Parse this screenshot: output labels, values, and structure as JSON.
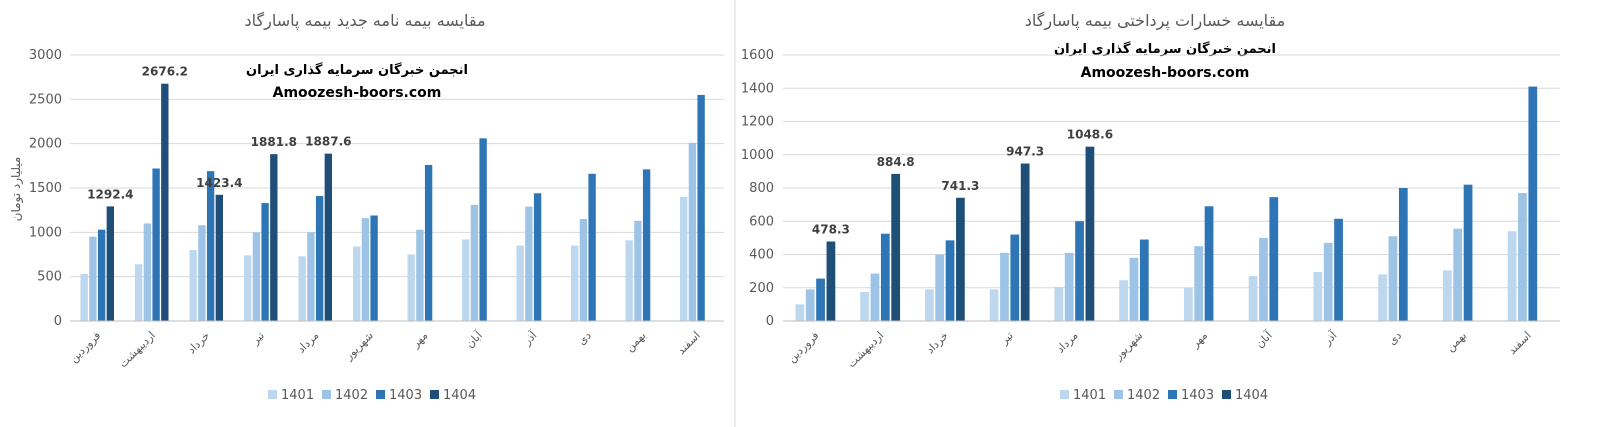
{
  "legend_series": [
    "1401",
    "1402",
    "1403",
    "1404"
  ],
  "colors": [
    "#BDD7EE",
    "#9DC3E6",
    "#2E75B6",
    "#1F4E79"
  ],
  "chart_data": [
    {
      "type": "bar",
      "title": "مقایسه بیمه نامه جدید بیمه پاسارگاد",
      "watermark_line1": "انجمن خبرگان سرمایه گذاری ایران",
      "watermark_line2": "Amoozesh-boors.com",
      "ylabel": "میلیارد تومان",
      "xlabel": "",
      "ylim": [
        0,
        3000
      ],
      "yticks": [
        0,
        500,
        1000,
        1500,
        2000,
        2500,
        3000
      ],
      "grid": true,
      "legend_position": "bottom",
      "categories": [
        "فروردین",
        "اردیبهشت",
        "خرداد",
        "تیر",
        "مرداد",
        "شهریور",
        "مهر",
        "آبان",
        "آذر",
        "دی",
        "بهمن",
        "اسفند"
      ],
      "series": [
        {
          "name": "1401",
          "values": [
            530,
            640,
            800,
            740,
            730,
            840,
            750,
            920,
            850,
            850,
            910,
            1400
          ]
        },
        {
          "name": "1402",
          "values": [
            950,
            1100,
            1080,
            1000,
            1000,
            1160,
            1030,
            1310,
            1290,
            1150,
            1130,
            2010
          ]
        },
        {
          "name": "1403",
          "values": [
            1030,
            1720,
            1690,
            1330,
            1410,
            1190,
            1760,
            2060,
            1440,
            1660,
            1710,
            2550
          ]
        },
        {
          "name": "1404",
          "values": [
            1292.4,
            2676.2,
            1423.4,
            1881.8,
            1887.6,
            null,
            null,
            null,
            null,
            null,
            null,
            null
          ]
        }
      ],
      "data_labels": [
        "1292.4",
        "2676.2",
        "1423.4",
        "1881.8",
        "1887.6"
      ]
    },
    {
      "type": "bar",
      "title": "مقایسه خسارات پرداختی بیمه پاسارگاد",
      "watermark_line1": "انجمن خبرگان سرمایه گذاری ایران",
      "watermark_line2": "Amoozesh-boors.com",
      "ylabel": "",
      "xlabel": "",
      "ylim": [
        0,
        1600
      ],
      "yticks": [
        0,
        200,
        400,
        600,
        800,
        1000,
        1200,
        1400,
        1600
      ],
      "grid": true,
      "legend_position": "bottom",
      "categories": [
        "فروردین",
        "اردیبهشت",
        "خرداد",
        "تیر",
        "مرداد",
        "شهریور",
        "مهر",
        "آبان",
        "آذر",
        "دی",
        "بهمن",
        "اسفند"
      ],
      "series": [
        {
          "name": "1401",
          "values": [
            100,
            175,
            190,
            190,
            205,
            245,
            200,
            270,
            295,
            280,
            305,
            540
          ]
        },
        {
          "name": "1402",
          "values": [
            190,
            285,
            400,
            410,
            410,
            380,
            450,
            500,
            470,
            510,
            555,
            770
          ]
        },
        {
          "name": "1403",
          "values": [
            255,
            525,
            485,
            520,
            600,
            490,
            690,
            745,
            615,
            800,
            820,
            1410
          ]
        },
        {
          "name": "1404",
          "values": [
            478.3,
            884.8,
            741.3,
            947.3,
            1048.6,
            null,
            null,
            null,
            null,
            null,
            null,
            null
          ]
        }
      ],
      "data_labels": [
        "478.3",
        "884.8",
        "741.3",
        "947.3",
        "1048.6"
      ]
    }
  ]
}
